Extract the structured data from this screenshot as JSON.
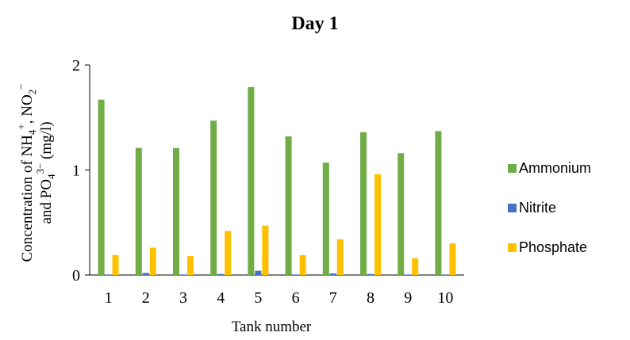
{
  "chart_data": {
    "type": "bar",
    "title": "Day 1",
    "xlabel": "Tank number",
    "ylabel": {
      "line1": "Concentration of NH4+, NO2−",
      "line2": "and PO43− (mg/l)"
    },
    "ylim": [
      0,
      2
    ],
    "yticks": [
      0,
      1,
      2
    ],
    "grid": false,
    "legend": "right",
    "categories": [
      "1",
      "2",
      "3",
      "4",
      "5",
      "6",
      "7",
      "8",
      "9",
      "10"
    ],
    "series": [
      {
        "name": "Ammonium",
        "color": "#70AD47",
        "values": [
          1.67,
          1.21,
          1.21,
          1.47,
          1.79,
          1.32,
          1.07,
          1.36,
          1.16,
          1.37
        ]
      },
      {
        "name": "Nitrite",
        "color": "#4472C4",
        "values": [
          0.005,
          0.02,
          0.005,
          0.01,
          0.04,
          0.005,
          0.015,
          0.01,
          0.005,
          0.005
        ]
      },
      {
        "name": "Phosphate",
        "color": "#FFC000",
        "values": [
          0.19,
          0.26,
          0.18,
          0.42,
          0.47,
          0.19,
          0.34,
          0.96,
          0.16,
          0.3
        ]
      }
    ]
  }
}
